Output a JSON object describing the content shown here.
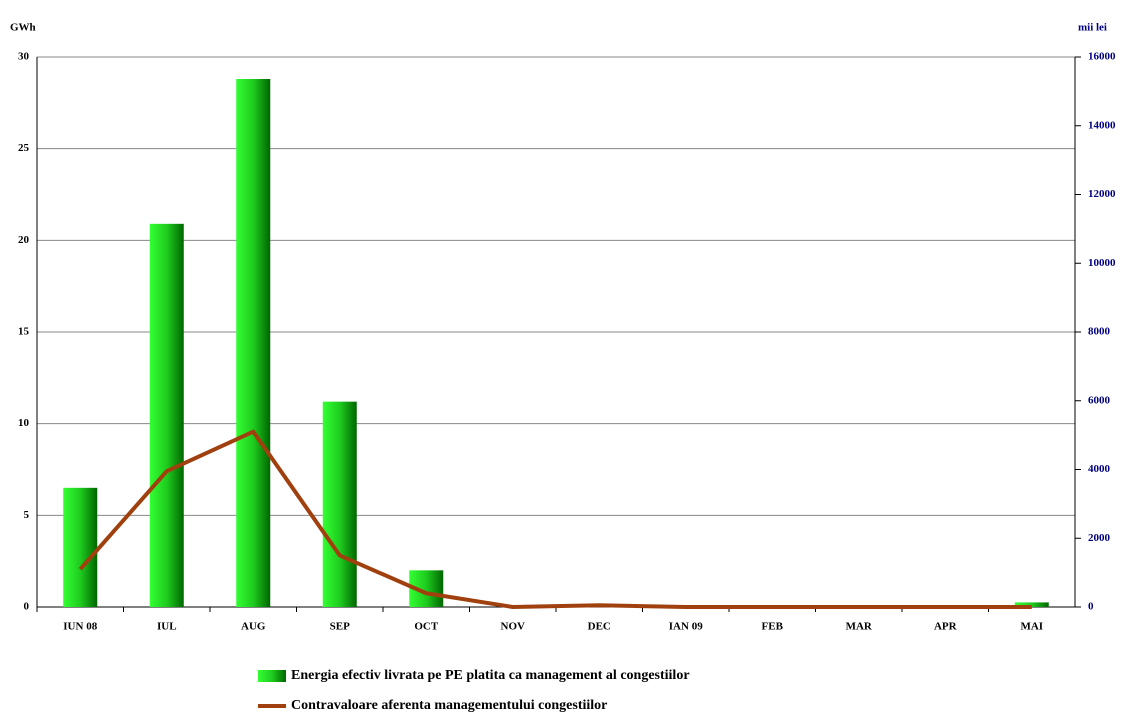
{
  "chart_data": {
    "type": "bar-line",
    "y_label": "GWh",
    "y2_label": "mii lei",
    "categories": [
      "IUN 08",
      "IUL",
      "AUG",
      "SEP",
      "OCT",
      "NOV",
      "DEC",
      "IAN 09",
      "FEB",
      "MAR",
      "APR",
      "MAI"
    ],
    "series": [
      {
        "name": "Energia efectiv livrata pe PE platita ca management al congestiilor",
        "type": "bar",
        "color": "#1fcc1f",
        "values": [
          6.5,
          20.9,
          28.8,
          11.2,
          2.0,
          0,
          0,
          0,
          0,
          0,
          0,
          0.25
        ]
      },
      {
        "name": "Contravaloare aferenta managementului congestiilor",
        "type": "line",
        "axis": "y2",
        "color": "#a0400f",
        "values": [
          1100,
          3950,
          5100,
          1500,
          400,
          0,
          50,
          0,
          0,
          0,
          0,
          0
        ]
      }
    ],
    "ylim": [
      0,
      30
    ],
    "yticks": [
      0,
      5,
      10,
      15,
      20,
      25,
      30
    ],
    "y2lim": [
      0,
      16000
    ],
    "y2ticks": [
      0,
      2000,
      4000,
      6000,
      8000,
      10000,
      12000,
      14000,
      16000
    ],
    "grid": true
  }
}
